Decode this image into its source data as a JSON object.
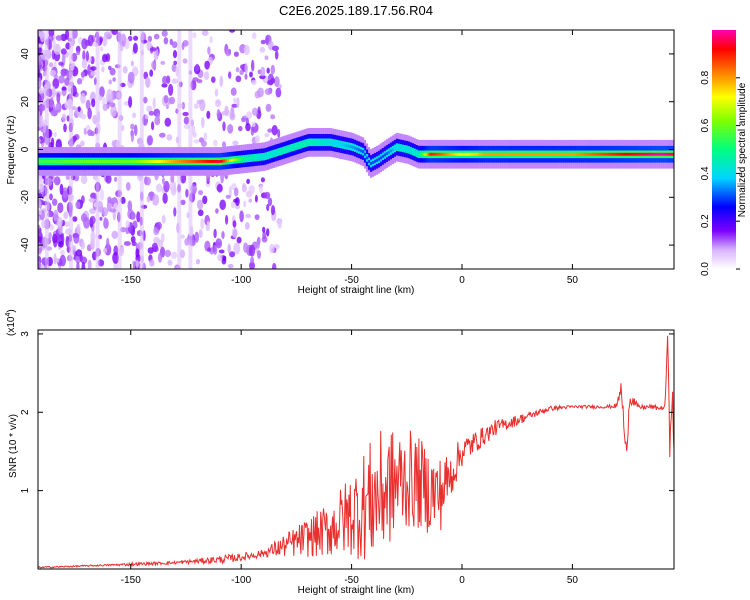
{
  "title": "C2E6.2025.189.17.56.R04",
  "chart_data": [
    {
      "type": "heatmap",
      "xlabel": "Height of straight line (km)",
      "ylabel": "Frequency (Hz)",
      "xlim": [
        -192,
        96
      ],
      "ylim": [
        -50,
        50
      ],
      "xticks": [
        "-150",
        "-100",
        "-50",
        "0",
        "50"
      ],
      "xtick_values": [
        -150,
        -100,
        -50,
        0,
        50
      ],
      "yticks": [
        "-40",
        "-20",
        "0",
        "20",
        "40"
      ],
      "ytick_values": [
        -40,
        -20,
        0,
        20,
        40
      ],
      "colorbar": {
        "label": "Normalized spectral amplitude",
        "ticks": [
          "0.0",
          "0.2",
          "0.4",
          "0.6",
          "0.8"
        ],
        "tick_values": [
          0.0,
          0.2,
          0.4,
          0.6,
          0.8
        ],
        "range": [
          0,
          1
        ]
      },
      "ridge": {
        "x": [
          -192,
          -170,
          -150,
          -130,
          -110,
          -100,
          -90,
          -80,
          -70,
          -60,
          -50,
          -45,
          -42,
          -38,
          -35,
          -30,
          -25,
          -20,
          -15,
          -10,
          0,
          10,
          30,
          50,
          70,
          90,
          96
        ],
        "y": [
          -5,
          -5,
          -5,
          -5,
          -5,
          -4,
          -3,
          0,
          3,
          3,
          1,
          -1,
          -6,
          -4,
          -2,
          1,
          0,
          -2,
          -2,
          -2,
          -2,
          -2,
          -2,
          -2,
          -2,
          -2,
          -2
        ],
        "amplitude": [
          0.55,
          0.6,
          0.6,
          0.8,
          0.95,
          0.5,
          0.4,
          0.45,
          0.45,
          0.4,
          0.35,
          0.3,
          0.3,
          0.3,
          0.3,
          0.4,
          0.4,
          0.45,
          0.9,
          0.85,
          0.7,
          0.8,
          0.8,
          0.8,
          0.9,
          1.0,
          0.95
        ]
      }
    },
    {
      "type": "line",
      "xlabel": "Height of straight line (km)",
      "ylabel": "SNR (10 * v/v)",
      "y_multiplier": "(x10",
      "y_multiplier_exp": "4",
      "xlim": [
        -192,
        96
      ],
      "ylim": [
        0,
        3.05
      ],
      "xticks": [
        "-150",
        "-100",
        "-50",
        "0",
        "50"
      ],
      "xtick_values": [
        -150,
        -100,
        -50,
        0,
        50
      ],
      "yticks": [
        "1",
        "2",
        "3"
      ],
      "ytick_values": [
        1,
        2,
        3
      ],
      "color": "#e8302f",
      "series": [
        {
          "x": [
            -192,
            -180,
            -170,
            -160,
            -150,
            -140,
            -130,
            -120,
            -110,
            -100,
            -90,
            -85,
            -80,
            -75,
            -70,
            -65,
            -60,
            -55,
            -50,
            -45,
            -40,
            -35,
            -30,
            -25,
            -20,
            -15,
            -10,
            -5,
            0,
            5,
            10,
            15,
            20,
            25,
            30,
            35,
            40,
            50,
            60,
            65,
            70,
            72,
            73,
            74,
            76,
            80,
            85,
            90,
            92,
            93,
            94,
            95,
            96
          ],
          "y": [
            0.02,
            0.03,
            0.04,
            0.05,
            0.06,
            0.07,
            0.08,
            0.1,
            0.12,
            0.15,
            0.2,
            0.25,
            0.3,
            0.35,
            0.4,
            0.45,
            0.5,
            0.6,
            0.7,
            0.8,
            0.9,
            1.0,
            1.1,
            1.15,
            1.1,
            1.0,
            0.95,
            1.2,
            1.5,
            1.6,
            1.7,
            1.8,
            1.85,
            1.9,
            1.95,
            2.0,
            2.05,
            2.07,
            2.07,
            2.07,
            2.08,
            2.3,
            2.0,
            1.4,
            2.2,
            2.06,
            2.07,
            2.05,
            2.07,
            3.0,
            1.6,
            2.4,
            1.3
          ],
          "noise": [
            0.01,
            0.01,
            0.01,
            0.01,
            0.02,
            0.02,
            0.02,
            0.03,
            0.05,
            0.05,
            0.05,
            0.1,
            0.15,
            0.2,
            0.25,
            0.3,
            0.35,
            0.45,
            0.55,
            0.7,
            0.8,
            0.8,
            0.7,
            0.65,
            0.6,
            0.55,
            0.5,
            0.3,
            0.2,
            0.15,
            0.12,
            0.1,
            0.08,
            0.07,
            0.05,
            0.04,
            0.03,
            0.02,
            0.02,
            0.02,
            0.03,
            0.1,
            0.15,
            0.2,
            0.1,
            0.03,
            0.03,
            0.03,
            0.03,
            0.2,
            0.3,
            0.3,
            0.3
          ]
        }
      ]
    }
  ]
}
